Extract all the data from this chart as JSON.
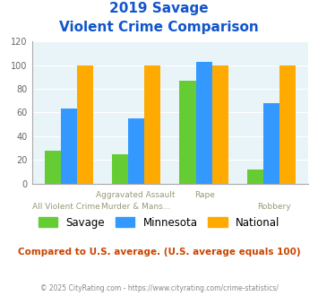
{
  "title_line1": "2019 Savage",
  "title_line2": "Violent Crime Comparison",
  "top_labels": [
    "",
    "Aggravated Assault",
    "",
    "Rape",
    ""
  ],
  "bot_labels": [
    "All Violent Crime",
    "Murder & Mans...",
    "",
    "Robbery"
  ],
  "groups": [
    {
      "label": "Savage",
      "color": "#66cc33",
      "values": [
        28,
        25,
        87,
        12
      ]
    },
    {
      "label": "Minnesota",
      "color": "#3399ff",
      "values": [
        63,
        55,
        103,
        68
      ]
    },
    {
      "label": "National",
      "color": "#ffaa00",
      "values": [
        100,
        100,
        100,
        100
      ]
    }
  ],
  "ylim": [
    0,
    120
  ],
  "yticks": [
    0,
    20,
    40,
    60,
    80,
    100,
    120
  ],
  "background_color": "#ffffff",
  "plot_bg_color": "#e8f4f8",
  "title_color": "#1155cc",
  "footer_text": "Compared to U.S. average. (U.S. average equals 100)",
  "footer_color": "#cc4400",
  "copyright_text": "© 2025 CityRating.com - https://www.cityrating.com/crime-statistics/",
  "copyright_color": "#888888",
  "bar_width": 0.24
}
